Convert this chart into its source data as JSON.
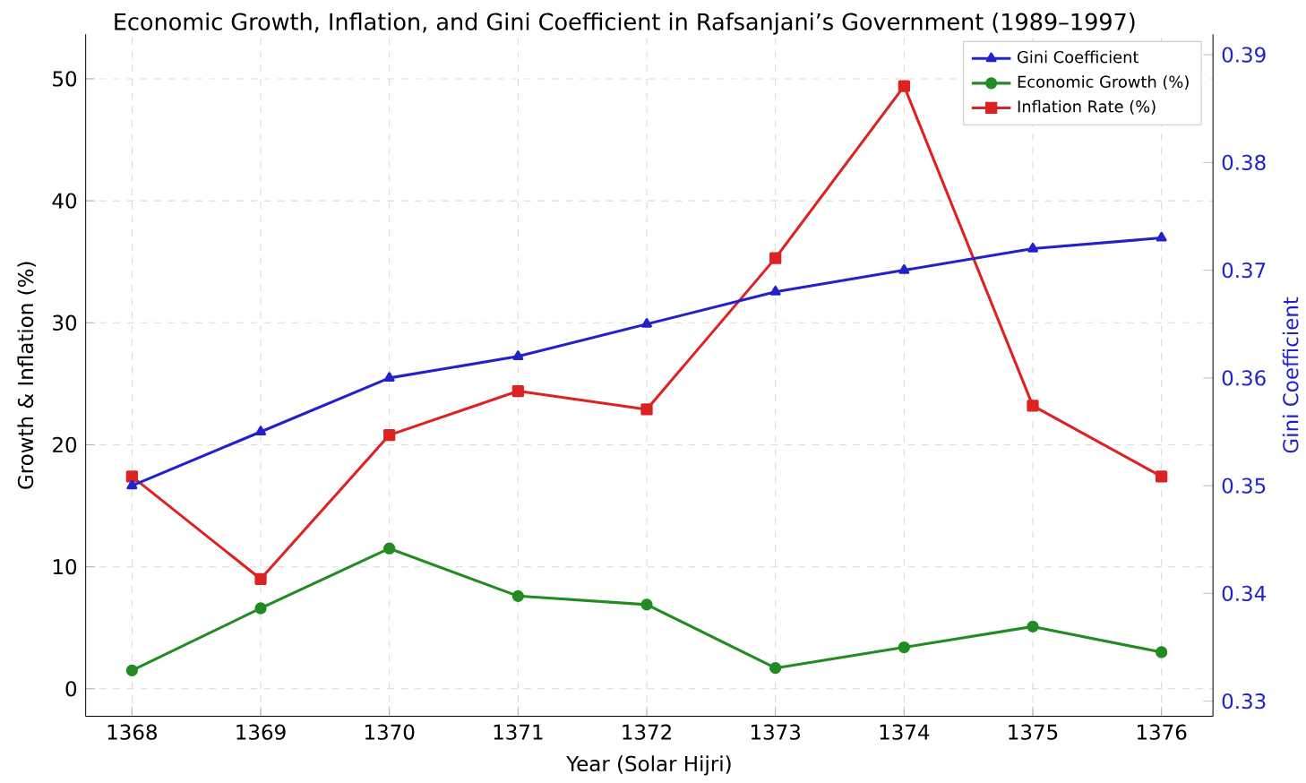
{
  "chart_data": {
    "type": "line",
    "title": "Economic Growth, Inflation, and Gini Coefficient in Rafsanjani’s Government (1989–1997)",
    "xlabel": "Year (Solar Hijri)",
    "ylabel": "Growth & Inflation (%)",
    "y2label": "Gini Coefficient",
    "x": [
      1368,
      1369,
      1370,
      1371,
      1372,
      1373,
      1374,
      1375,
      1376
    ],
    "series": [
      {
        "name": "Economic Growth (%)",
        "color": "#228b22",
        "marker": "circle",
        "values": [
          1.5,
          6.6,
          11.5,
          7.6,
          6.9,
          1.7,
          3.4,
          5.1,
          3.0
        ]
      },
      {
        "name": "Inflation Rate (%)",
        "color": "#dd2222",
        "marker": "square",
        "values": [
          17.4,
          9.0,
          20.8,
          24.4,
          22.9,
          35.3,
          49.4,
          23.2,
          17.4
        ]
      },
      {
        "name": "Gini Coefficient",
        "color": "#2222cc",
        "marker": "triangle",
        "axis": "y2",
        "values": [
          0.35,
          0.355,
          0.36,
          0.362,
          0.365,
          0.368,
          0.37,
          0.372,
          0.373
        ]
      }
    ],
    "xlim": [
      1367.64,
      1376.4
    ],
    "xticks": [
      1368,
      1369,
      1370,
      1371,
      1372,
      1373,
      1374,
      1375,
      1376
    ],
    "ylim": [
      -2.25,
      53.65
    ],
    "yticks": [
      0,
      10,
      20,
      30,
      40,
      50
    ],
    "y2lim": [
      0.3286,
      0.3919
    ],
    "y2ticks": [
      0.33,
      0.34,
      0.35,
      0.36,
      0.37,
      0.38,
      0.39
    ],
    "grid": true,
    "legend": "top right",
    "line_style": "solid"
  }
}
